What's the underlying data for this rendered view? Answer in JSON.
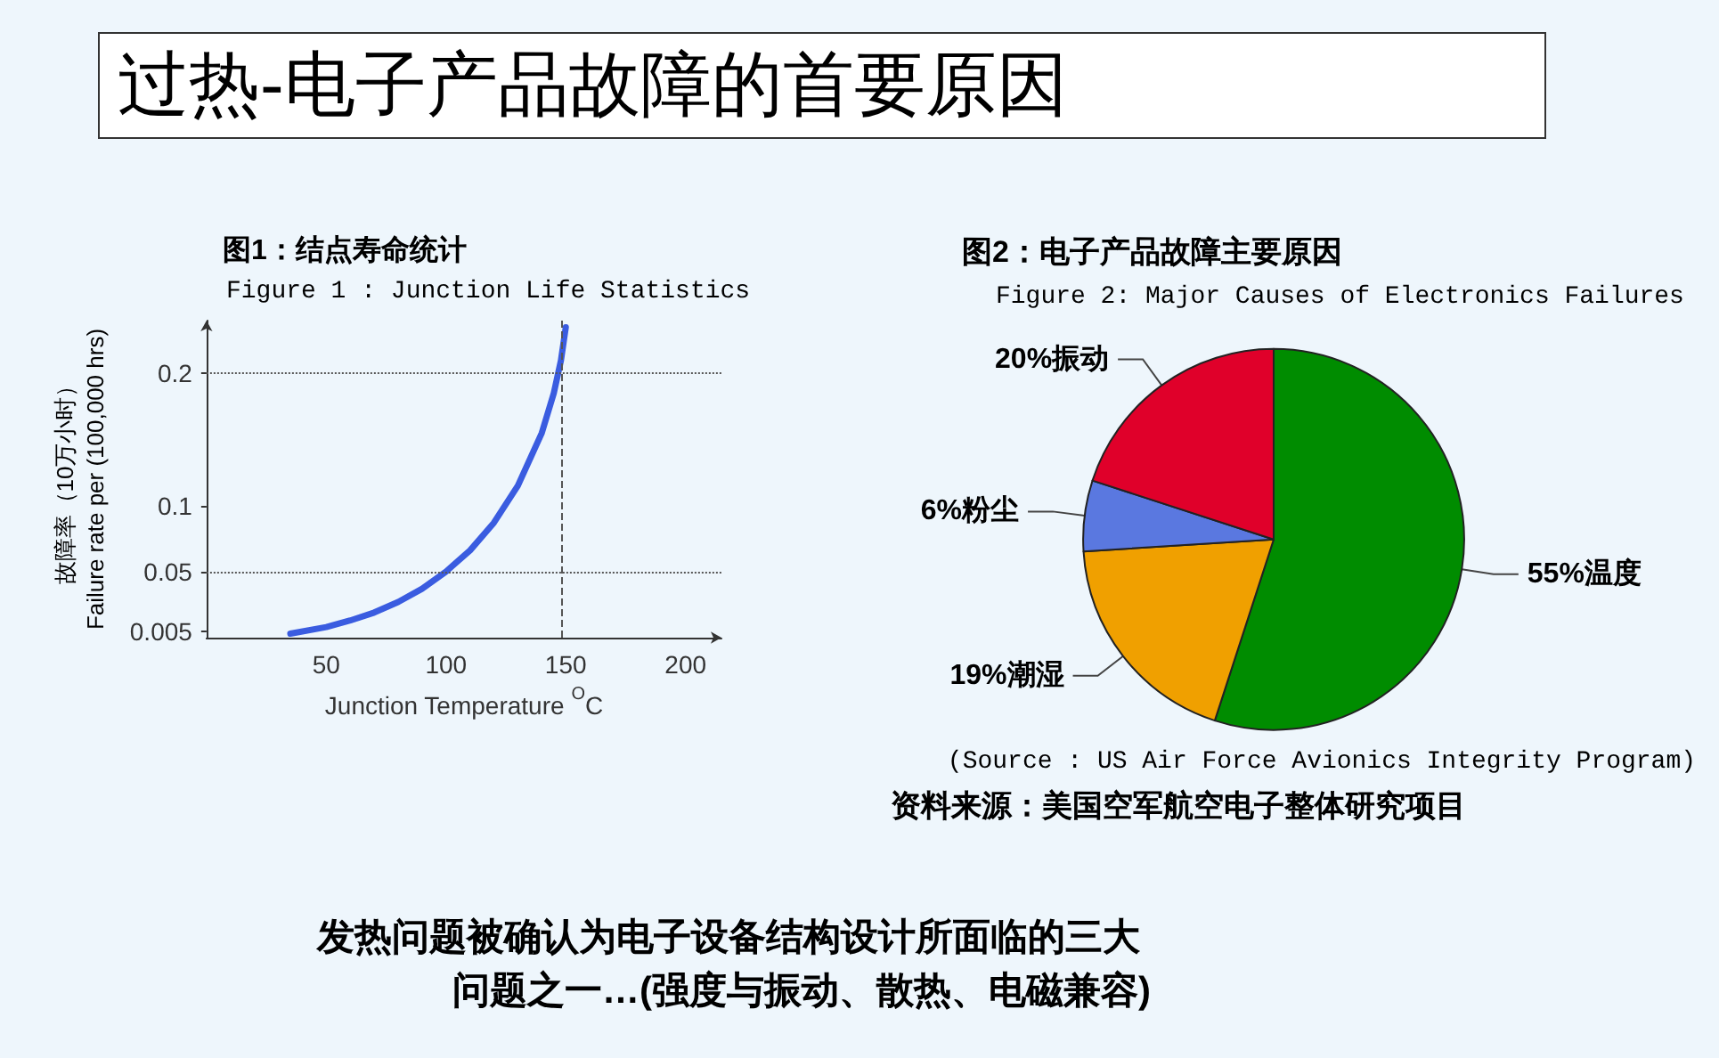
{
  "chart_data": [
    {
      "type": "other",
      "title": "过热-电子产品故障的首要原因",
      "annotations": [
        "发热问题被确认为电子设备结构设计所面临的三大",
        "问题之一…(强度与振动、散热、电磁兼容)"
      ]
    },
    {
      "type": "line",
      "title": "图1：结点寿命统计",
      "subtitle": "Figure 1 : Junction Life Statistics",
      "xlabel": "Junction Temperature $^{O}$C",
      "ylabel": "故障率（10万小时）\nFailure rate per (100,000 hrs)",
      "x": [
        35,
        50,
        60,
        70,
        80,
        90,
        100,
        110,
        120,
        130,
        140,
        145,
        148,
        150
      ],
      "series": [
        {
          "color": "#3a5ce0",
          "values": [
            0.003,
            0.008,
            0.013,
            0.019,
            0.027,
            0.037,
            0.05,
            0.066,
            0.087,
            0.115,
            0.155,
            0.185,
            0.21,
            0.235
          ]
        }
      ],
      "xlim": [
        0,
        215
      ],
      "xticks": [
        50,
        100,
        150,
        200
      ],
      "ylim": [
        0,
        0.24
      ],
      "yticks": [
        0.005,
        0.05,
        0.1,
        0.2
      ],
      "ref_lines": [
        {
          "axis": "y",
          "value": 0.2,
          "line_style": "dotted"
        },
        {
          "axis": "y",
          "value": 0.05,
          "line_style": "dotted"
        },
        {
          "axis": "x",
          "value": 148,
          "line_style": "dashed"
        }
      ],
      "grid": false,
      "legend": false,
      "marker": "none"
    },
    {
      "type": "pie",
      "title": "图2：电子产品故障主要原因",
      "subtitle": "Figure 2: Major Causes of Electronics Failures",
      "categories": [
        "温度",
        "潮湿",
        "粉尘",
        "振动"
      ],
      "values": [
        55,
        19,
        6,
        20
      ],
      "value_labels": [
        "55%",
        "19%",
        "6%",
        "20%"
      ],
      "colors": [
        "#008c00",
        "#f0a000",
        "#5a78e0",
        "#e0002a"
      ],
      "annotations": [
        "(Source : US Air Force Avionics Integrity Program)",
        "资料来源：美国空军航空电子整体研究项目"
      ],
      "legend": false
    }
  ]
}
